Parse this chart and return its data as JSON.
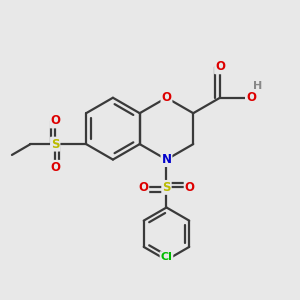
{
  "bg_color": "#e8e8e8",
  "bond_color": "#3a3a3a",
  "bond_width": 1.6,
  "atom_colors": {
    "O": "#dd0000",
    "N": "#0000cc",
    "S": "#bbbb00",
    "Cl": "#00bb00",
    "H": "#888888",
    "C": "#3a3a3a"
  },
  "font_size": 8.5,
  "fig_size": [
    3.0,
    3.0
  ],
  "dpi": 100,
  "xlim": [
    0.0,
    1.0
  ],
  "ylim": [
    0.0,
    1.0
  ]
}
